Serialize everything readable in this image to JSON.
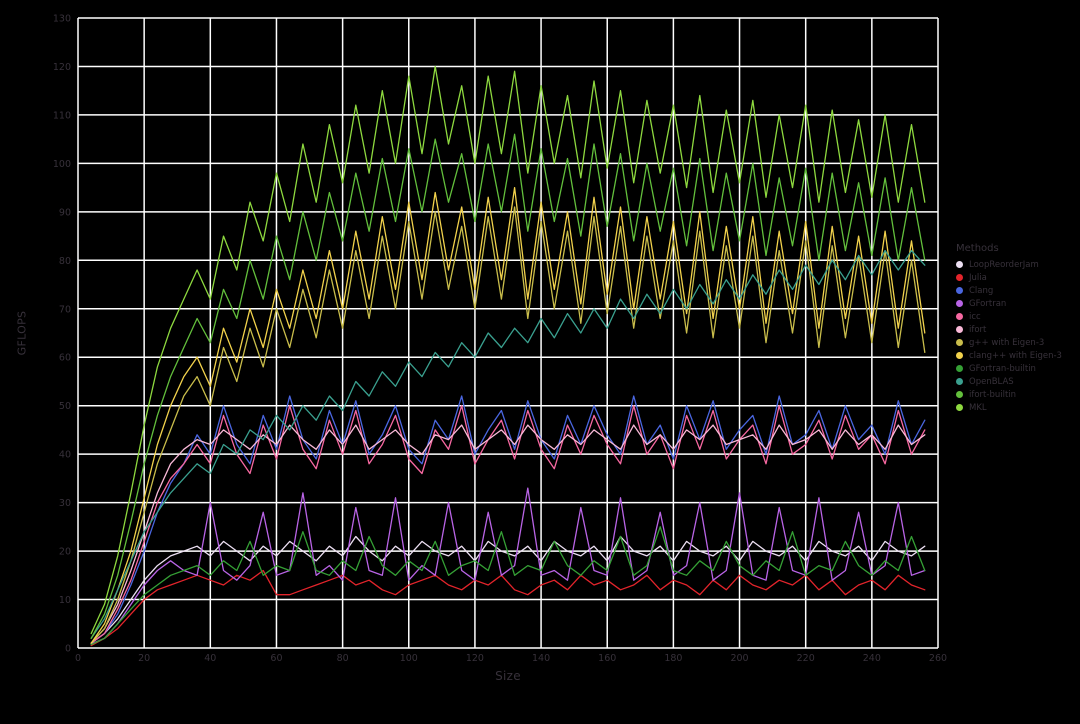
{
  "styles": {
    "background": "#000000",
    "grid_color": "#ffffff",
    "grid_width": 1.5,
    "text_color": "#37313a",
    "line_width": 1.3
  },
  "chart_data": {
    "type": "line",
    "title": "",
    "xlabel": "Size",
    "ylabel": "GFLOPS",
    "legend_title": "Methods",
    "legend_position": "right-outside",
    "grid": true,
    "xlim": [
      0,
      260
    ],
    "ylim": [
      0,
      130
    ],
    "xticks": [
      0,
      20,
      40,
      60,
      80,
      100,
      120,
      140,
      160,
      180,
      200,
      220,
      240,
      260
    ],
    "yticks": [
      0,
      10,
      20,
      30,
      40,
      50,
      60,
      70,
      80,
      90,
      100,
      110,
      120,
      130
    ],
    "x": [
      4,
      8,
      12,
      16,
      20,
      24,
      28,
      32,
      36,
      40,
      44,
      48,
      52,
      56,
      60,
      64,
      68,
      72,
      76,
      80,
      84,
      88,
      92,
      96,
      100,
      104,
      108,
      112,
      116,
      120,
      124,
      128,
      132,
      136,
      140,
      144,
      148,
      152,
      156,
      160,
      164,
      168,
      172,
      176,
      180,
      184,
      188,
      192,
      196,
      200,
      204,
      208,
      212,
      216,
      220,
      224,
      228,
      232,
      236,
      240,
      244,
      248,
      252,
      256
    ],
    "series": [
      {
        "name": "LoopReorderJam",
        "color": "#ecdff2",
        "values": [
          1,
          3,
          6,
          10,
          14,
          17,
          19,
          20,
          21,
          19,
          22,
          20,
          18,
          21,
          19,
          22,
          20,
          18,
          21,
          19,
          23,
          20,
          18,
          21,
          19,
          22,
          20,
          19,
          21,
          18,
          22,
          20,
          19,
          21,
          18,
          22,
          20,
          19,
          21,
          18,
          23,
          20,
          19,
          21,
          18,
          22,
          20,
          19,
          21,
          18,
          22,
          20,
          19,
          21,
          18,
          22,
          20,
          19,
          21,
          18,
          22,
          20,
          19,
          21
        ]
      },
      {
        "name": "Julia",
        "color": "#e3242b",
        "values": [
          0.5,
          2,
          4,
          7,
          10,
          12,
          13,
          14,
          15,
          14,
          13,
          15,
          14,
          16,
          11,
          11,
          12,
          13,
          14,
          15,
          13,
          14,
          12,
          11,
          13,
          14,
          15,
          13,
          12,
          14,
          13,
          15,
          12,
          11,
          13,
          14,
          12,
          15,
          13,
          14,
          12,
          13,
          15,
          12,
          14,
          13,
          11,
          14,
          12,
          15,
          13,
          12,
          14,
          13,
          15,
          12,
          14,
          11,
          13,
          14,
          12,
          15,
          13,
          12
        ]
      },
      {
        "name": "Clang",
        "color": "#4a66e0",
        "values": [
          1,
          3,
          7,
          13,
          20,
          28,
          34,
          38,
          44,
          40,
          50,
          42,
          38,
          48,
          41,
          52,
          43,
          39,
          49,
          42,
          51,
          40,
          44,
          50,
          41,
          38,
          47,
          43,
          52,
          40,
          45,
          49,
          41,
          51,
          43,
          39,
          48,
          42,
          50,
          44,
          40,
          52,
          42,
          46,
          39,
          50,
          43,
          51,
          41,
          45,
          48,
          40,
          52,
          42,
          44,
          49,
          41,
          50,
          43,
          46,
          40,
          51,
          42,
          47
        ]
      },
      {
        "name": "GFortran",
        "color": "#b964e6",
        "values": [
          0.8,
          2,
          5,
          9,
          13,
          16,
          18,
          16,
          15,
          30,
          16,
          14,
          17,
          28,
          15,
          16,
          32,
          15,
          17,
          14,
          29,
          16,
          15,
          31,
          14,
          17,
          15,
          30,
          16,
          14,
          28,
          15,
          17,
          33,
          15,
          16,
          14,
          29,
          16,
          15,
          31,
          14,
          16,
          28,
          15,
          17,
          30,
          14,
          16,
          32,
          15,
          14,
          29,
          16,
          15,
          31,
          14,
          16,
          28,
          15,
          17,
          30,
          15,
          16
        ]
      },
      {
        "name": "icc",
        "color": "#f768a1",
        "values": [
          1,
          3,
          8,
          14,
          22,
          30,
          35,
          38,
          42,
          38,
          48,
          40,
          36,
          46,
          39,
          50,
          41,
          37,
          47,
          40,
          49,
          38,
          42,
          48,
          39,
          36,
          45,
          41,
          50,
          38,
          43,
          47,
          39,
          49,
          41,
          37,
          46,
          40,
          48,
          42,
          38,
          50,
          40,
          44,
          37,
          48,
          41,
          49,
          39,
          43,
          46,
          38,
          50,
          40,
          42,
          47,
          39,
          48,
          41,
          44,
          38,
          49,
          40,
          45
        ]
      },
      {
        "name": "ifort",
        "color": "#f9b9d8",
        "values": [
          1,
          4,
          9,
          16,
          24,
          32,
          38,
          41,
          43,
          42,
          45,
          43,
          41,
          44,
          42,
          46,
          43,
          41,
          45,
          42,
          46,
          41,
          43,
          45,
          42,
          40,
          44,
          43,
          46,
          41,
          43,
          45,
          42,
          46,
          43,
          41,
          44,
          42,
          45,
          43,
          41,
          46,
          42,
          44,
          41,
          45,
          43,
          46,
          42,
          43,
          44,
          41,
          46,
          42,
          43,
          45,
          41,
          45,
          42,
          44,
          41,
          46,
          42,
          44
        ]
      },
      {
        "name": "g++ with Eigen-3",
        "color": "#c9bd4b",
        "values": [
          1,
          4,
          10,
          18,
          28,
          38,
          45,
          52,
          56,
          50,
          62,
          55,
          66,
          58,
          70,
          62,
          74,
          64,
          78,
          66,
          82,
          68,
          85,
          70,
          88,
          72,
          90,
          74,
          87,
          70,
          89,
          72,
          91,
          68,
          88,
          70,
          86,
          67,
          89,
          69,
          87,
          66,
          85,
          68,
          84,
          65,
          86,
          64,
          83,
          66,
          85,
          63,
          82,
          65,
          84,
          62,
          83,
          64,
          81,
          63,
          82,
          62,
          80,
          61
        ]
      },
      {
        "name": "clang++ with Eigen-3",
        "color": "#f2d24c",
        "values": [
          1,
          5,
          12,
          20,
          31,
          42,
          50,
          56,
          60,
          54,
          66,
          59,
          70,
          62,
          74,
          66,
          78,
          68,
          82,
          70,
          86,
          72,
          89,
          74,
          92,
          76,
          94,
          78,
          91,
          74,
          93,
          76,
          95,
          72,
          92,
          74,
          90,
          71,
          93,
          73,
          91,
          70,
          89,
          72,
          88,
          69,
          90,
          68,
          87,
          70,
          89,
          67,
          86,
          69,
          88,
          66,
          87,
          68,
          85,
          67,
          86,
          66,
          84,
          65
        ]
      },
      {
        "name": "GFortran-builtin",
        "color": "#35a035",
        "values": [
          0.7,
          2,
          5,
          8,
          11,
          13,
          15,
          16,
          17,
          15,
          18,
          16,
          22,
          15,
          17,
          16,
          24,
          16,
          15,
          18,
          16,
          23,
          17,
          15,
          18,
          16,
          22,
          15,
          17,
          18,
          16,
          24,
          15,
          17,
          16,
          22,
          17,
          15,
          18,
          16,
          23,
          15,
          17,
          25,
          16,
          15,
          18,
          16,
          22,
          17,
          15,
          18,
          16,
          24,
          15,
          17,
          16,
          22,
          17,
          15,
          18,
          16,
          23,
          16
        ]
      },
      {
        "name": "OpenBLAS",
        "color": "#3aa08f",
        "values": [
          2,
          6,
          12,
          18,
          24,
          28,
          32,
          35,
          38,
          36,
          42,
          40,
          45,
          43,
          48,
          45,
          50,
          47,
          52,
          49,
          55,
          52,
          57,
          54,
          59,
          56,
          61,
          58,
          63,
          60,
          65,
          62,
          66,
          63,
          68,
          64,
          69,
          65,
          70,
          66,
          72,
          68,
          73,
          69,
          74,
          70,
          75,
          71,
          76,
          72,
          77,
          73,
          78,
          74,
          79,
          75,
          80,
          76,
          81,
          77,
          82,
          78,
          82,
          79
        ]
      },
      {
        "name": "ifort-builtin",
        "color": "#63bf3c",
        "values": [
          2,
          7,
          15,
          26,
          38,
          48,
          56,
          62,
          68,
          63,
          74,
          68,
          80,
          72,
          85,
          76,
          90,
          80,
          94,
          84,
          98,
          86,
          101,
          88,
          103,
          90,
          105,
          92,
          102,
          88,
          104,
          90,
          106,
          86,
          103,
          88,
          101,
          85,
          104,
          87,
          102,
          84,
          100,
          86,
          99,
          83,
          101,
          82,
          98,
          84,
          100,
          81,
          97,
          83,
          99,
          80,
          98,
          82,
          96,
          81,
          97,
          80,
          95,
          80
        ]
      },
      {
        "name": "MKL",
        "color": "#8ed93f",
        "values": [
          3,
          9,
          19,
          32,
          46,
          58,
          66,
          72,
          78,
          72,
          85,
          78,
          92,
          84,
          98,
          88,
          104,
          92,
          108,
          96,
          112,
          98,
          115,
          100,
          118,
          102,
          120,
          104,
          116,
          100,
          118,
          102,
          119,
          98,
          116,
          100,
          114,
          97,
          117,
          99,
          115,
          96,
          113,
          98,
          112,
          95,
          114,
          94,
          111,
          96,
          113,
          93,
          110,
          95,
          112,
          92,
          111,
          94,
          109,
          93,
          110,
          92,
          108,
          92
        ]
      }
    ]
  }
}
